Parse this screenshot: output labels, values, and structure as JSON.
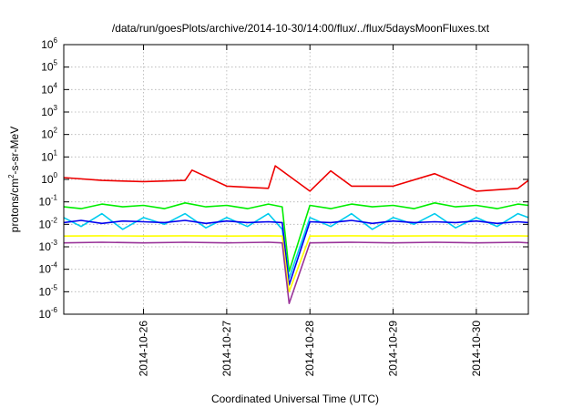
{
  "chart_data": {
    "type": "line",
    "title": "/data/run/goesPlots/archive/2014-10-30/14:00/flux/../flux/5daysMoonFluxes.txt",
    "xlabel": "Coordinated Universal Time (UTC)",
    "ylabel": {
      "base": "protons/cm",
      "sup": "2",
      "rest": "-s-sr-MeV"
    },
    "y_scale": "log",
    "ylim": [
      1e-06,
      1000000.0
    ],
    "xlim": [
      "2014-10-25T01:00",
      "2014-10-30T15:00"
    ],
    "grid": true,
    "legend": "none",
    "x_ticks": [
      "2014-10-26",
      "2014-10-27",
      "2014-10-28",
      "2014-10-29",
      "2014-10-30"
    ],
    "y_ticks": [
      {
        "value": 1e-06,
        "base": "10",
        "exp": "-6"
      },
      {
        "value": 1e-05,
        "base": "10",
        "exp": "-5"
      },
      {
        "value": 0.0001,
        "base": "10",
        "exp": "-4"
      },
      {
        "value": 0.001,
        "base": "10",
        "exp": "-3"
      },
      {
        "value": 0.01,
        "base": "10",
        "exp": "-2"
      },
      {
        "value": 0.1,
        "base": "10",
        "exp": "-1"
      },
      {
        "value": 1,
        "base": "10",
        "exp": "0"
      },
      {
        "value": 10,
        "base": "10",
        "exp": "1"
      },
      {
        "value": 100,
        "base": "10",
        "exp": "2"
      },
      {
        "value": 1000,
        "base": "10",
        "exp": "3"
      },
      {
        "value": 10000,
        "base": "10",
        "exp": "4"
      },
      {
        "value": 100000,
        "base": "10",
        "exp": "5"
      },
      {
        "value": 1000000,
        "base": "10",
        "exp": "6"
      }
    ],
    "series": [
      {
        "color": "#00ee00",
        "x": [
          "2014-10-25T01:00",
          "2014-10-25T06:00",
          "2014-10-25T12:00",
          "2014-10-25T18:00",
          "2014-10-26T00:00",
          "2014-10-26T06:00",
          "2014-10-26T12:00",
          "2014-10-26T18:00",
          "2014-10-27T00:00",
          "2014-10-27T06:00",
          "2014-10-27T12:00",
          "2014-10-27T16:00",
          "2014-10-27T18:00",
          "2014-10-28T00:00",
          "2014-10-28T06:00",
          "2014-10-28T12:00",
          "2014-10-28T18:00",
          "2014-10-29T00:00",
          "2014-10-29T06:00",
          "2014-10-29T12:00",
          "2014-10-29T18:00",
          "2014-10-30T00:00",
          "2014-10-30T06:00",
          "2014-10-30T12:00",
          "2014-10-30T15:00"
        ],
        "y": [
          0.06,
          0.05,
          0.08,
          0.06,
          0.07,
          0.05,
          0.09,
          0.06,
          0.07,
          0.05,
          0.08,
          0.06,
          8e-05,
          0.07,
          0.05,
          0.08,
          0.06,
          0.07,
          0.05,
          0.09,
          0.06,
          0.07,
          0.05,
          0.08,
          0.07
        ]
      },
      {
        "color": "#00ccee",
        "x": [
          "2014-10-25T01:00",
          "2014-10-25T06:00",
          "2014-10-25T12:00",
          "2014-10-25T18:00",
          "2014-10-26T00:00",
          "2014-10-26T06:00",
          "2014-10-26T12:00",
          "2014-10-26T18:00",
          "2014-10-27T00:00",
          "2014-10-27T06:00",
          "2014-10-27T12:00",
          "2014-10-27T16:00",
          "2014-10-27T18:00",
          "2014-10-28T00:00",
          "2014-10-28T06:00",
          "2014-10-28T12:00",
          "2014-10-28T18:00",
          "2014-10-29T00:00",
          "2014-10-29T06:00",
          "2014-10-29T12:00",
          "2014-10-29T18:00",
          "2014-10-30T00:00",
          "2014-10-30T06:00",
          "2014-10-30T12:00",
          "2014-10-30T15:00"
        ],
        "y": [
          0.02,
          0.008,
          0.03,
          0.006,
          0.02,
          0.01,
          0.03,
          0.007,
          0.02,
          0.008,
          0.03,
          0.006,
          4e-05,
          0.02,
          0.008,
          0.03,
          0.006,
          0.02,
          0.01,
          0.03,
          0.007,
          0.02,
          0.008,
          0.03,
          0.02
        ]
      },
      {
        "color": "#0000ee",
        "x": [
          "2014-10-25T01:00",
          "2014-10-25T06:00",
          "2014-10-25T12:00",
          "2014-10-25T18:00",
          "2014-10-26T00:00",
          "2014-10-26T06:00",
          "2014-10-26T12:00",
          "2014-10-26T18:00",
          "2014-10-27T00:00",
          "2014-10-27T06:00",
          "2014-10-27T12:00",
          "2014-10-27T16:00",
          "2014-10-27T18:00",
          "2014-10-28T00:00",
          "2014-10-28T06:00",
          "2014-10-28T12:00",
          "2014-10-28T18:00",
          "2014-10-29T00:00",
          "2014-10-29T06:00",
          "2014-10-29T12:00",
          "2014-10-29T18:00",
          "2014-10-30T00:00",
          "2014-10-30T06:00",
          "2014-10-30T12:00",
          "2014-10-30T15:00"
        ],
        "y": [
          0.012,
          0.015,
          0.011,
          0.014,
          0.013,
          0.012,
          0.015,
          0.011,
          0.014,
          0.012,
          0.013,
          0.012,
          2e-05,
          0.013,
          0.012,
          0.015,
          0.011,
          0.014,
          0.012,
          0.013,
          0.012,
          0.014,
          0.011,
          0.013,
          0.012
        ]
      },
      {
        "color": "#ffff00",
        "x": [
          "2014-10-25T01:00",
          "2014-10-25T12:00",
          "2014-10-26T00:00",
          "2014-10-26T12:00",
          "2014-10-27T00:00",
          "2014-10-27T12:00",
          "2014-10-27T16:00",
          "2014-10-27T18:00",
          "2014-10-28T00:00",
          "2014-10-28T12:00",
          "2014-10-29T00:00",
          "2014-10-29T12:00",
          "2014-10-30T00:00",
          "2014-10-30T12:00",
          "2014-10-30T15:00"
        ],
        "y": [
          0.003,
          0.0031,
          0.003,
          0.0031,
          0.003,
          0.0031,
          0.003,
          1e-05,
          0.003,
          0.0031,
          0.003,
          0.0031,
          0.003,
          0.0031,
          0.003
        ]
      },
      {
        "color": "#993399",
        "x": [
          "2014-10-25T01:00",
          "2014-10-25T12:00",
          "2014-10-26T00:00",
          "2014-10-26T12:00",
          "2014-10-27T00:00",
          "2014-10-27T12:00",
          "2014-10-27T16:00",
          "2014-10-27T18:00",
          "2014-10-28T00:00",
          "2014-10-28T12:00",
          "2014-10-29T00:00",
          "2014-10-29T12:00",
          "2014-10-30T00:00",
          "2014-10-30T12:00",
          "2014-10-30T15:00"
        ],
        "y": [
          0.0015,
          0.0016,
          0.0015,
          0.0016,
          0.0015,
          0.0016,
          0.0015,
          3e-06,
          0.0015,
          0.0016,
          0.0015,
          0.0016,
          0.0015,
          0.0016,
          0.0015
        ]
      },
      {
        "color": "#ee0000",
        "x": [
          "2014-10-25T01:00",
          "2014-10-25T12:00",
          "2014-10-26T00:00",
          "2014-10-26T12:00",
          "2014-10-26T14:00",
          "2014-10-27T00:00",
          "2014-10-27T12:00",
          "2014-10-27T14:00",
          "2014-10-28T00:00",
          "2014-10-28T06:00",
          "2014-10-28T12:00",
          "2014-10-29T00:00",
          "2014-10-29T12:00",
          "2014-10-30T00:00",
          "2014-10-30T12:00",
          "2014-10-30T15:00"
        ],
        "y": [
          1.2,
          0.9,
          0.8,
          0.9,
          2.6,
          0.5,
          0.4,
          4.0,
          0.3,
          2.4,
          0.5,
          0.5,
          1.8,
          0.3,
          0.4,
          0.9
        ]
      }
    ]
  }
}
